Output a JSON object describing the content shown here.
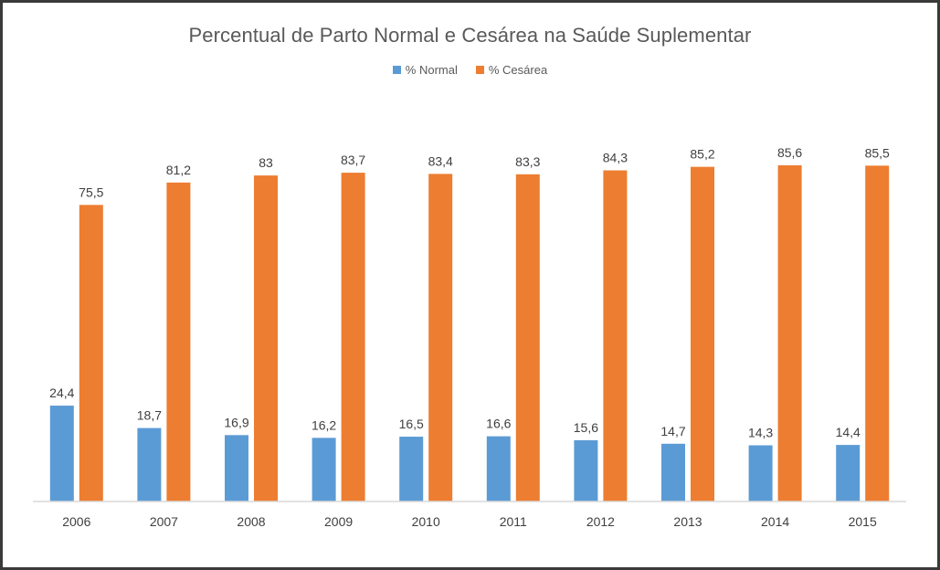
{
  "chart_data": {
    "type": "bar",
    "title": "Percentual de Parto Normal e Cesárea na Saúde Suplementar",
    "xlabel": "",
    "ylabel": "",
    "ylim": [
      0,
      100
    ],
    "grid": false,
    "legend_position": "top-center",
    "categories": [
      "2006",
      "2007",
      "2008",
      "2009",
      "2010",
      "2011",
      "2012",
      "2013",
      "2014",
      "2015"
    ],
    "series": [
      {
        "name": "% Normal",
        "color": "#5b9bd5",
        "values": [
          24.4,
          18.7,
          16.9,
          16.2,
          16.5,
          16.6,
          15.6,
          14.7,
          14.3,
          14.4
        ],
        "labels": [
          "24,4",
          "18,7",
          "16,9",
          "16,2",
          "16,5",
          "16,6",
          "15,6",
          "14,7",
          "14,3",
          "14,4"
        ]
      },
      {
        "name": "% Cesárea",
        "color": "#ed7d31",
        "values": [
          75.5,
          81.2,
          83,
          83.7,
          83.4,
          83.3,
          84.3,
          85.2,
          85.6,
          85.5
        ],
        "labels": [
          "75,5",
          "81,2",
          "83",
          "83,7",
          "83,4",
          "83,3",
          "84,3",
          "85,2",
          "85,6",
          "85,5"
        ]
      }
    ]
  }
}
